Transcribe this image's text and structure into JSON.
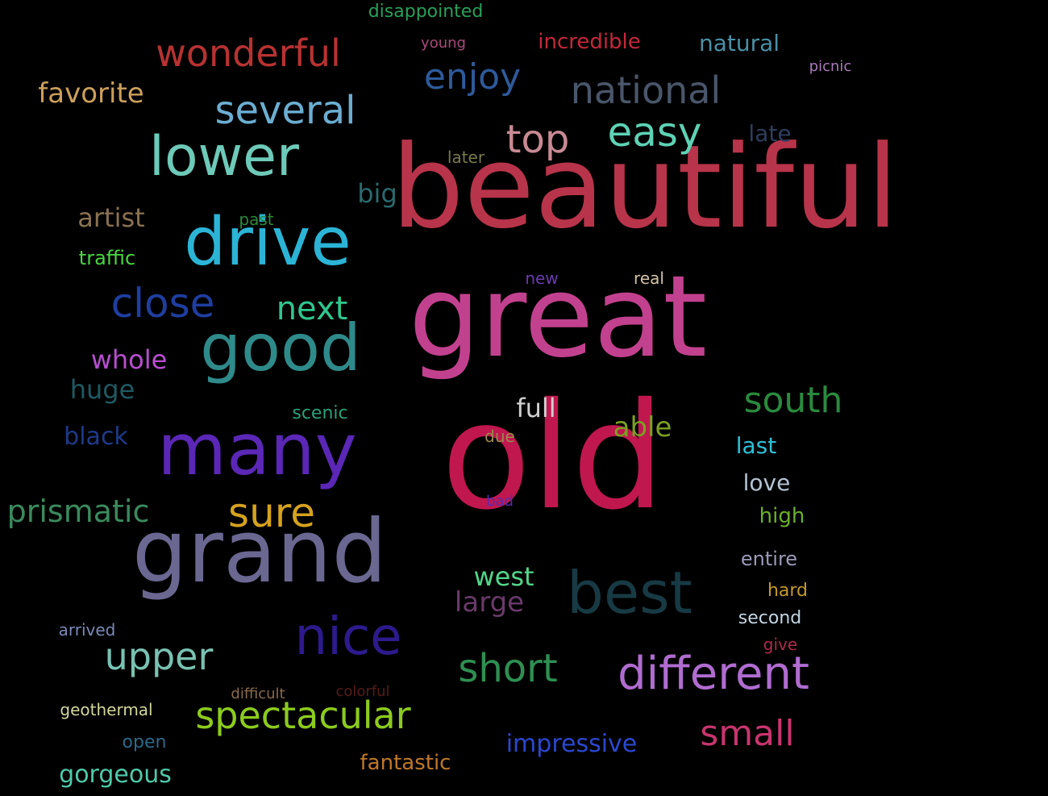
{
  "words": [
    {
      "text": "beautiful",
      "color": "#b8344a"
    },
    {
      "text": "great",
      "color": "#c2418e"
    },
    {
      "text": "old",
      "color": "#c0174f"
    },
    {
      "text": "many",
      "color": "#5a27b6"
    },
    {
      "text": "grand",
      "color": "#6a6791"
    },
    {
      "text": "good",
      "color": "#2f8a8a"
    },
    {
      "text": "drive",
      "color": "#2bb4d6"
    },
    {
      "text": "lower",
      "color": "#6dcab8"
    },
    {
      "text": "best",
      "color": "#173a44"
    },
    {
      "text": "nice",
      "color": "#2d1a8c"
    },
    {
      "text": "different",
      "color": "#b06cd0"
    },
    {
      "text": "spectacular",
      "color": "#8ccb1e"
    },
    {
      "text": "wonderful",
      "color": "#b83232"
    },
    {
      "text": "several",
      "color": "#6caed2"
    },
    {
      "text": "short",
      "color": "#2e8f52"
    },
    {
      "text": "upper",
      "color": "#78c2b2"
    },
    {
      "text": "sure",
      "color": "#d6a21e"
    },
    {
      "text": "close",
      "color": "#1f3ea0"
    },
    {
      "text": "small",
      "color": "#c8356e"
    },
    {
      "text": "top",
      "color": "#c88a94"
    },
    {
      "text": "easy",
      "color": "#5ed2b4"
    },
    {
      "text": "national",
      "color": "#4a566a"
    },
    {
      "text": "south",
      "color": "#2a8a3e"
    },
    {
      "text": "enjoy",
      "color": "#2e5a9a"
    },
    {
      "text": "next",
      "color": "#2fc68e"
    },
    {
      "text": "prismatic",
      "color": "#3a8a5e"
    },
    {
      "text": "favorite",
      "color": "#cca05a"
    },
    {
      "text": "impressive",
      "color": "#2a48d0"
    },
    {
      "text": "large",
      "color": "#6a3a6a"
    },
    {
      "text": "west",
      "color": "#52d68a"
    },
    {
      "text": "artist",
      "color": "#8a7250"
    },
    {
      "text": "whole",
      "color": "#b84ed0"
    },
    {
      "text": "big",
      "color": "#2a6a6e"
    },
    {
      "text": "huge",
      "color": "#1e5a62"
    },
    {
      "text": "black",
      "color": "#1e3a8a"
    },
    {
      "text": "gorgeous",
      "color": "#4ecaaa"
    },
    {
      "text": "natural",
      "color": "#4a90a6"
    },
    {
      "text": "incredible",
      "color": "#c4283a"
    },
    {
      "text": "full",
      "color": "#cfcfcf"
    },
    {
      "text": "able",
      "color": "#7ca022"
    },
    {
      "text": "late",
      "color": "#2e3e5e"
    },
    {
      "text": "last",
      "color": "#2ec0d6"
    },
    {
      "text": "love",
      "color": "#b4c2d2"
    },
    {
      "text": "high",
      "color": "#6ab02a"
    },
    {
      "text": "entire",
      "color": "#9a9ab8"
    },
    {
      "text": "fantastic",
      "color": "#c0782a"
    },
    {
      "text": "traffic",
      "color": "#4ad642"
    },
    {
      "text": "disappointed",
      "color": "#28a05a"
    },
    {
      "text": "scenic",
      "color": "#2aa07a"
    },
    {
      "text": "open",
      "color": "#2a6a8a"
    },
    {
      "text": "second",
      "color": "#c4d6e2"
    },
    {
      "text": "hard",
      "color": "#c49a2a"
    },
    {
      "text": "geothermal",
      "color": "#d2d69a"
    },
    {
      "text": "arrived",
      "color": "#7a8ab8"
    },
    {
      "text": "later",
      "color": "#7a7a4a"
    },
    {
      "text": "past",
      "color": "#2a8a3a"
    },
    {
      "text": "difficult",
      "color": "#8a6a4a"
    },
    {
      "text": "colorful",
      "color": "#5a1a1a"
    },
    {
      "text": "young",
      "color": "#a84a7a"
    },
    {
      "text": "new",
      "color": "#6a3ab0"
    },
    {
      "text": "real",
      "color": "#d2c2a6"
    },
    {
      "text": "due",
      "color": "#9a8a4a"
    },
    {
      "text": "give",
      "color": "#b02a4a"
    },
    {
      "text": "picnic",
      "color": "#a87ab8"
    },
    {
      "text": "bad",
      "color": "#5a2ab0"
    }
  ]
}
